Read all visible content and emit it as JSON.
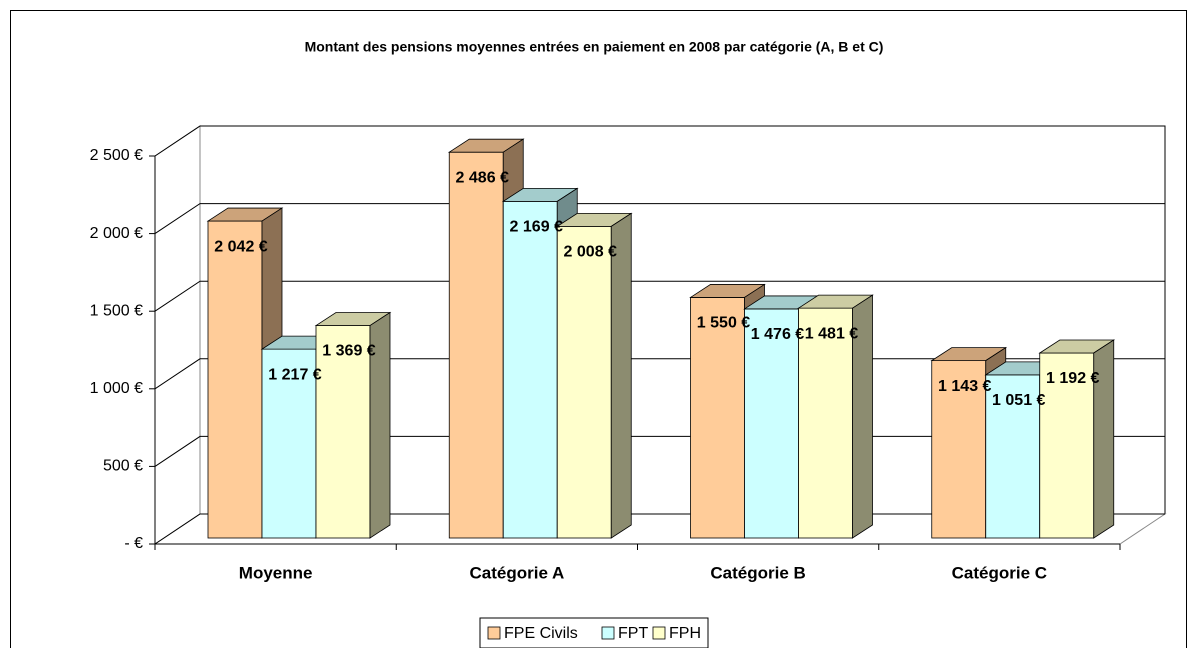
{
  "chart_data": {
    "type": "bar3d",
    "title": "Montant des pensions moyennes entrées en paiement en 2008 par catégorie (A, B et C)",
    "categories": [
      "Moyenne",
      "Catégorie A",
      "Catégorie B",
      "Catégorie C"
    ],
    "series": [
      {
        "name": "FPE Civils",
        "color": "#FFCC99",
        "values": [
          2042,
          2486,
          1550,
          1143
        ],
        "value_labels": [
          "2 042 €",
          "2 486 €",
          "1 550 €",
          "1 143 €"
        ]
      },
      {
        "name": "FPT",
        "color": "#CCFFFF",
        "values": [
          1217,
          2169,
          1476,
          1051
        ],
        "value_labels": [
          "1 217 €",
          "2 169 €",
          "1 476 €",
          "1 051 €"
        ]
      },
      {
        "name": "FPH",
        "color": "#FFFFCC",
        "values": [
          1369,
          2008,
          1481,
          1192
        ],
        "value_labels": [
          "1 369 €",
          "2 008 €",
          "1 481 €",
          "1 192 €"
        ]
      }
    ],
    "ylim": [
      0,
      2500
    ],
    "yticks": [
      {
        "value": 0,
        "label": "- €"
      },
      {
        "value": 500,
        "label": "500 €"
      },
      {
        "value": 1000,
        "label": "1 000 €"
      },
      {
        "value": 1500,
        "label": "1 500 €"
      },
      {
        "value": 2000,
        "label": "2 000 €"
      },
      {
        "value": 2500,
        "label": "2 500 €"
      }
    ],
    "grid": true,
    "legend": "bottom"
  }
}
